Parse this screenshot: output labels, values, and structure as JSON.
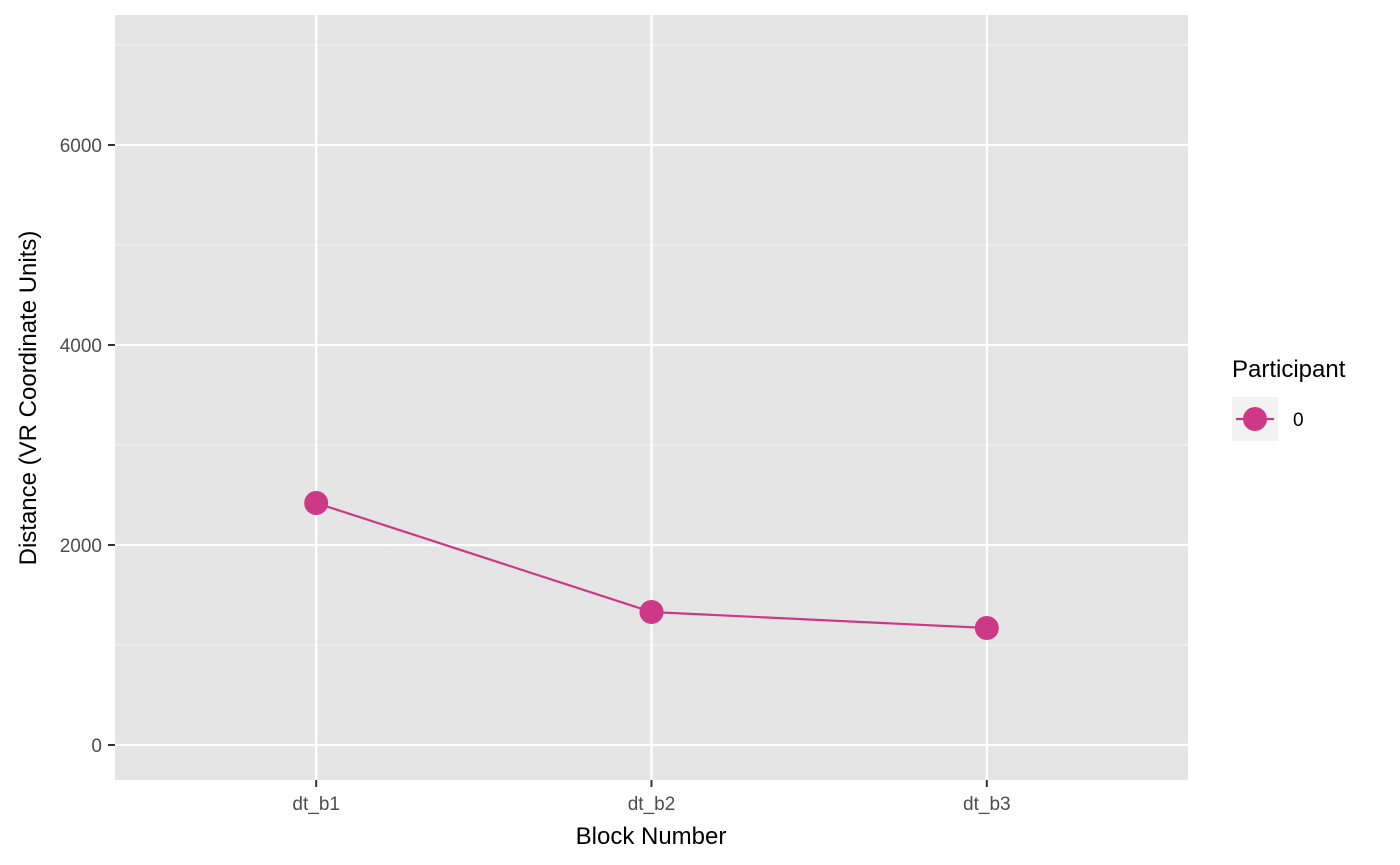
{
  "chart_data": {
    "type": "line",
    "title": "",
    "xlabel": "Block Number",
    "ylabel": "Distance (VR Coordinate Units)",
    "categories": [
      "dt_b1",
      "dt_b2",
      "dt_b3"
    ],
    "series": [
      {
        "name": "0",
        "values": [
          2420,
          1330,
          1170
        ],
        "color": "#CC3A87"
      }
    ],
    "ylim": [
      -350,
      7300
    ],
    "yticks": [
      0,
      2000,
      4000,
      6000
    ],
    "grid": true,
    "panel_background": "#E5E5E5",
    "legend": {
      "title": "Participant",
      "position": "right"
    }
  }
}
